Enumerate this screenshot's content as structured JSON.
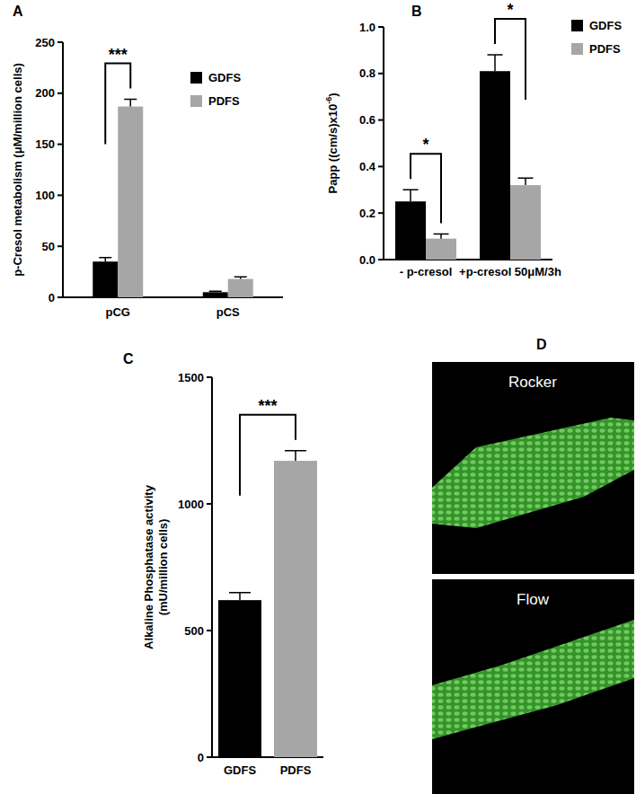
{
  "chart_data": [
    {
      "type": "bar",
      "panel": "A",
      "ylabel": "p-Cresol metabolism (μM/million cells)",
      "categories": [
        "pCG",
        "pCS"
      ],
      "series": [
        {
          "name": "GDFS",
          "color": "#000000",
          "values": [
            35,
            5
          ],
          "errors": [
            4,
            1
          ]
        },
        {
          "name": "PDFS",
          "color": "#a6a6a6",
          "values": [
            187,
            18
          ],
          "errors": [
            7,
            2
          ]
        }
      ],
      "ylim": [
        0,
        250
      ],
      "yticks": [
        0,
        50,
        100,
        150,
        200,
        250
      ],
      "legend": "upper right",
      "annotations": [
        {
          "text": "***",
          "category": 0
        }
      ]
    },
    {
      "type": "bar",
      "panel": "B",
      "ylabel": "Papp ((cm/s)x10",
      "ylabel_sup": "-6",
      "ylabel_end": ")",
      "categories": [
        "- p-cresol",
        "+p-cresol 50μM/3h"
      ],
      "series": [
        {
          "name": "GDFS",
          "color": "#000000",
          "values": [
            0.25,
            0.81
          ],
          "errors": [
            0.05,
            0.07
          ]
        },
        {
          "name": "PDFS",
          "color": "#a6a6a6",
          "values": [
            0.09,
            0.32
          ],
          "errors": [
            0.02,
            0.03
          ]
        }
      ],
      "ylim": [
        0,
        1
      ],
      "yticks": [
        {
          "value": 0,
          "label": "0.0"
        },
        0.2,
        0.4,
        0.6,
        0.8,
        {
          "value": 1,
          "label": "1.0"
        }
      ],
      "legend": "upper right",
      "annotations": [
        {
          "text": "*",
          "category": 0
        },
        {
          "text": "*",
          "category": 1
        }
      ]
    },
    {
      "type": "bar",
      "panel": "C",
      "ylabel": [
        "Alkaline Phosphatase activity",
        "(mU/million cells)"
      ],
      "categories": [
        "GDFS",
        "PDFS"
      ],
      "values": [
        620,
        1170
      ],
      "errors": [
        30,
        40
      ],
      "colors": [
        "#000000",
        "#a6a6a6"
      ],
      "ylim": [
        0,
        1500
      ],
      "yticks": [
        0,
        500,
        1000,
        1500
      ],
      "annotations": [
        {
          "text": "***"
        }
      ]
    },
    {
      "type": "image",
      "panel": "D",
      "labels": [
        "Rocker",
        "Flow"
      ]
    }
  ]
}
